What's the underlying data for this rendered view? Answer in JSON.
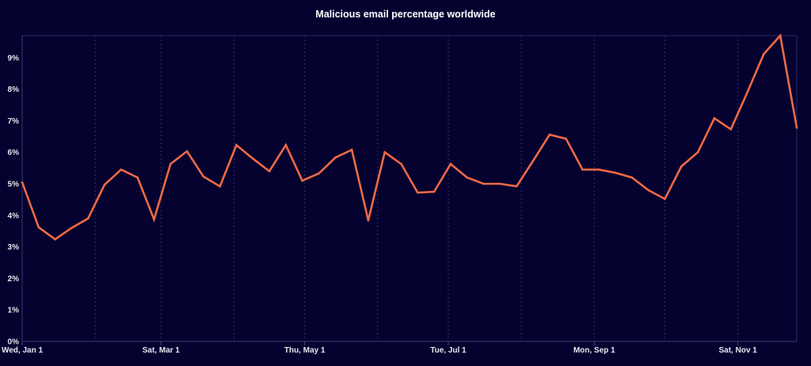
{
  "chart_data": {
    "type": "line",
    "title": "Malicious email percentage worldwide",
    "xlabel": "",
    "ylabel": "",
    "x": [
      "2025-01-01",
      "2025-01-08",
      "2025-01-15",
      "2025-01-22",
      "2025-01-29",
      "2025-02-05",
      "2025-02-12",
      "2025-02-19",
      "2025-02-26",
      "2025-03-05",
      "2025-03-12",
      "2025-03-19",
      "2025-03-26",
      "2025-04-02",
      "2025-04-09",
      "2025-04-16",
      "2025-04-23",
      "2025-04-30",
      "2025-05-07",
      "2025-05-14",
      "2025-05-21",
      "2025-05-28",
      "2025-06-04",
      "2025-06-11",
      "2025-06-18",
      "2025-06-25",
      "2025-07-02",
      "2025-07-09",
      "2025-07-16",
      "2025-07-23",
      "2025-07-30",
      "2025-08-06",
      "2025-08-13",
      "2025-08-20",
      "2025-08-27",
      "2025-09-03",
      "2025-09-10",
      "2025-09-17",
      "2025-09-24",
      "2025-10-01",
      "2025-10-08",
      "2025-10-15",
      "2025-10-22",
      "2025-10-29",
      "2025-11-05",
      "2025-11-12",
      "2025-11-19",
      "2025-11-26"
    ],
    "series": [
      {
        "values": [
          5.05,
          3.62,
          3.24,
          3.6,
          3.9,
          4.97,
          5.45,
          5.2,
          3.87,
          5.63,
          6.03,
          5.23,
          4.92,
          6.23,
          5.8,
          5.4,
          6.23,
          5.1,
          5.33,
          5.83,
          6.08,
          3.84,
          6.0,
          5.63,
          4.72,
          4.75,
          5.63,
          5.2,
          5.0,
          5.0,
          4.92,
          5.73,
          6.56,
          6.43,
          5.45,
          5.45,
          5.35,
          5.2,
          4.8,
          4.52,
          5.55,
          6.0,
          7.08,
          6.73,
          7.9,
          9.12,
          9.7,
          6.78
        ],
        "color": "#ee6a45"
      }
    ],
    "ylim": [
      0,
      9.7
    ],
    "xlim": [
      "2025-01-01",
      "2025-11-26"
    ],
    "yticks": [
      "0%",
      "1%",
      "2%",
      "3%",
      "4%",
      "5%",
      "6%",
      "7%",
      "8%",
      "9%"
    ],
    "xticks": [
      {
        "date": "2025-01-01",
        "label": "Wed, Jan 1"
      },
      {
        "date": "2025-03-01",
        "label": "Sat, Mar 1"
      },
      {
        "date": "2025-05-01",
        "label": "Thu, May 1"
      },
      {
        "date": "2025-07-01",
        "label": "Tue, Jul 1"
      },
      {
        "date": "2025-09-01",
        "label": "Mon, Sep 1"
      },
      {
        "date": "2025-11-01",
        "label": "Sat, Nov 1"
      }
    ],
    "minor_gridlines": [
      "2025-02-01",
      "2025-04-01",
      "2025-06-01",
      "2025-08-01",
      "2025-10-01"
    ],
    "grid": "vertical dashed",
    "background": "#050230"
  }
}
